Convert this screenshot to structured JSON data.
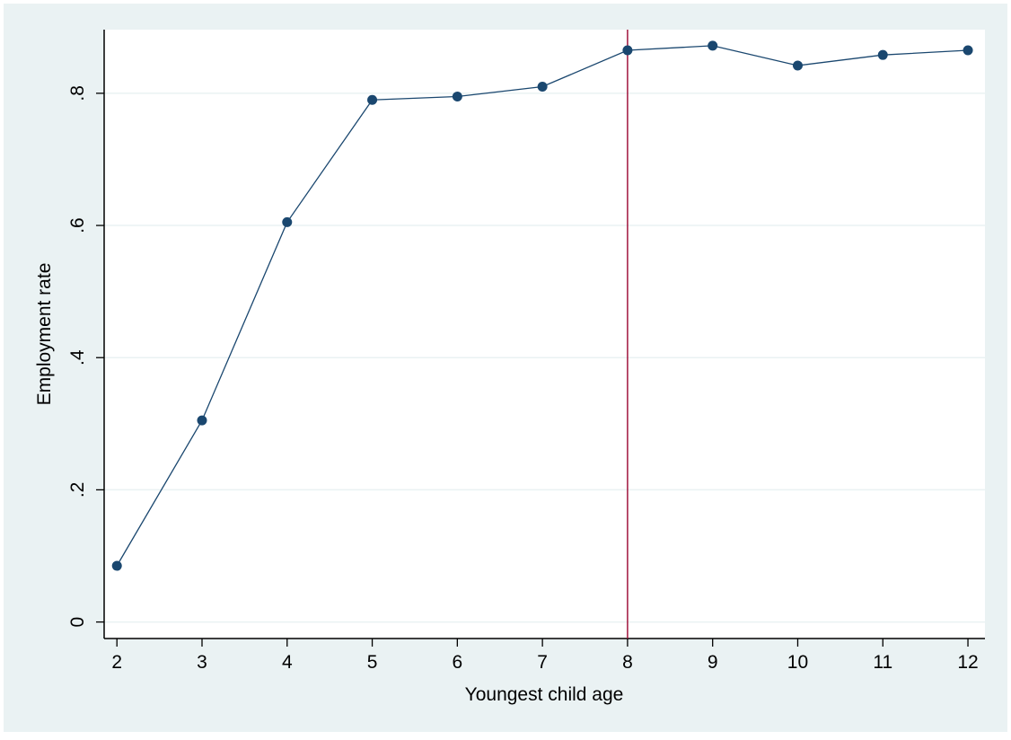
{
  "chart_data": {
    "type": "line",
    "title": "",
    "xlabel": "Youngest child age",
    "ylabel": "Employment rate",
    "x": [
      2,
      3,
      4,
      5,
      6,
      7,
      8,
      9,
      10,
      11,
      12
    ],
    "series": [
      {
        "name": "",
        "values": [
          0.085,
          0.305,
          0.605,
          0.79,
          0.795,
          0.81,
          0.865,
          0.872,
          0.842,
          0.858,
          0.865
        ]
      }
    ],
    "xticks": [
      {
        "value": 2,
        "label": "2"
      },
      {
        "value": 3,
        "label": "3"
      },
      {
        "value": 4,
        "label": "4"
      },
      {
        "value": 5,
        "label": "5"
      },
      {
        "value": 6,
        "label": "6"
      },
      {
        "value": 7,
        "label": "7"
      },
      {
        "value": 8,
        "label": "8"
      },
      {
        "value": 9,
        "label": "9"
      },
      {
        "value": 10,
        "label": "10"
      },
      {
        "value": 11,
        "label": "11"
      },
      {
        "value": 12,
        "label": "12"
      }
    ],
    "yticks": [
      {
        "value": 0,
        "label": "0"
      },
      {
        "value": 0.2,
        "label": ".2"
      },
      {
        "value": 0.4,
        "label": ".4"
      },
      {
        "value": 0.6,
        "label": ".6"
      },
      {
        "value": 0.8,
        "label": ".8"
      }
    ],
    "xlim": [
      1.85,
      12.2
    ],
    "ylim": [
      -0.025,
      0.8963
    ],
    "grid": true,
    "reference_line": {
      "axis": "x",
      "value": 8,
      "color": "#a0143c"
    },
    "colors": {
      "outer_background": "#eaf2f3",
      "plot_background": "#ffffff",
      "series_line": "#1a476f",
      "marker": "#1a476f",
      "gridline": "#eaf2f3"
    }
  }
}
